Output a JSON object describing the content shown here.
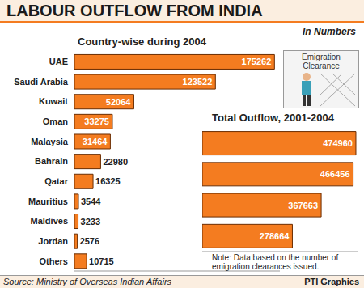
{
  "title": "LABOUR OUTFLOW FROM INDIA",
  "subtitle": "In Numbers",
  "icon_label": "Emigration Clearance",
  "source": "Source: Ministry of Overseas Indian Affairs",
  "credit": "PTI Graphics",
  "chart_data": [
    {
      "type": "bar",
      "orientation": "horizontal",
      "title": "Country-wise during 2004",
      "categories": [
        "UAE",
        "Saudi Arabia",
        "Kuwait",
        "Oman",
        "Malaysia",
        "Bahrain",
        "Qatar",
        "Mauritius",
        "Maldives",
        "Jordan",
        "Others"
      ],
      "values": [
        175262,
        123522,
        52064,
        33275,
        31464,
        22980,
        16325,
        3544,
        3233,
        2576,
        10715
      ],
      "color": "#f47c20",
      "xlim": [
        0,
        180000
      ],
      "data_labels": true,
      "tick_labels": "y"
    },
    {
      "type": "bar",
      "orientation": "horizontal",
      "title": "Total Outflow, 2001-2004",
      "categories": [
        null,
        null,
        null,
        null
      ],
      "values": [
        474960,
        466456,
        367663,
        278664
      ],
      "color": "#f47c20",
      "xlim": [
        0,
        480000
      ],
      "data_labels": true,
      "tick_labels": false,
      "annotation": "Note: Data based on the number of emigration clearances issued."
    }
  ]
}
